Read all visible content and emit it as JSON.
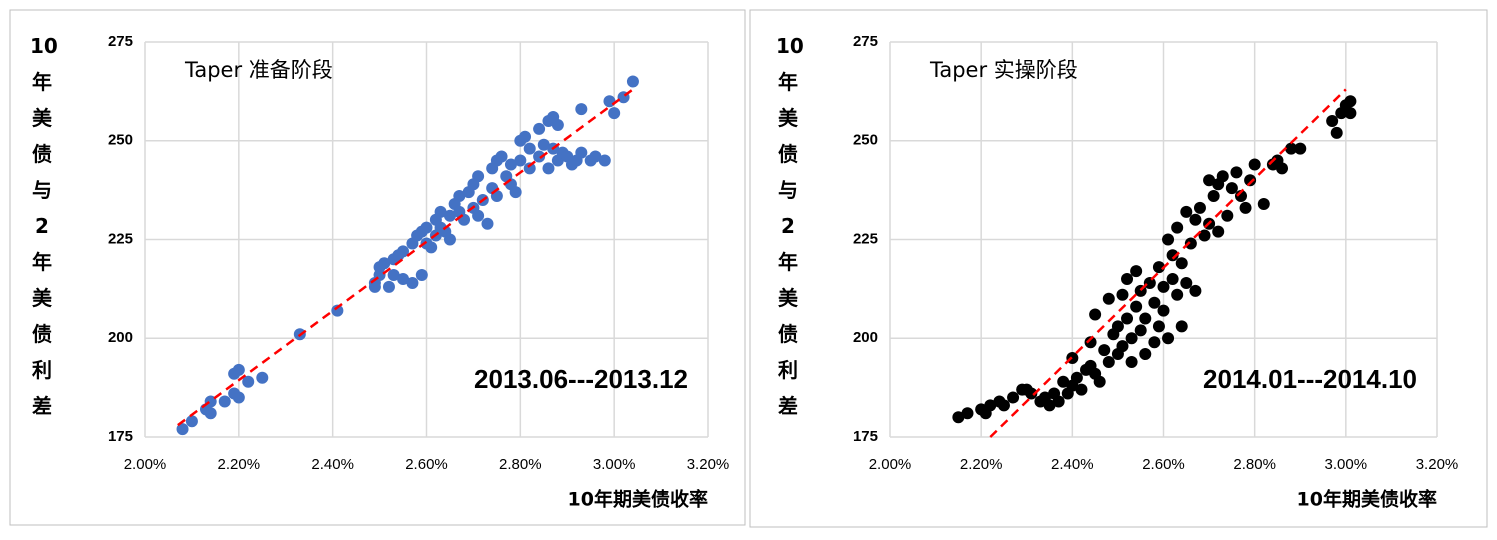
{
  "chart_data": [
    {
      "type": "scatter",
      "title": "Taper 准备阶段",
      "annotation": "2013.06---2013.12",
      "x_label": "10年期美债收率",
      "y_label": "10年美债与2年美债利差",
      "color": "#4472c4",
      "grid": true,
      "xlim": [
        2.0,
        3.2
      ],
      "ylim": [
        175,
        275
      ],
      "xticks": [
        {
          "value": 2.0,
          "label": "2.00%"
        },
        {
          "value": 2.2,
          "label": "2.20%"
        },
        {
          "value": 2.4,
          "label": "2.40%"
        },
        {
          "value": 2.6,
          "label": "2.60%"
        },
        {
          "value": 2.8,
          "label": "2.80%"
        },
        {
          "value": 3.0,
          "label": "3.00%"
        },
        {
          "value": 3.2,
          "label": "3.20%"
        }
      ],
      "yticks": [
        175,
        200,
        225,
        250,
        275
      ],
      "trendline": {
        "color": "#ff0000",
        "x": [
          2.07,
          3.04
        ],
        "y": [
          178,
          263
        ]
      },
      "x": [
        2.08,
        2.1,
        2.13,
        2.14,
        2.14,
        2.17,
        2.19,
        2.19,
        2.2,
        2.2,
        2.22,
        2.25,
        2.33,
        2.41,
        2.49,
        2.49,
        2.5,
        2.5,
        2.51,
        2.52,
        2.53,
        2.53,
        2.54,
        2.55,
        2.55,
        2.57,
        2.57,
        2.58,
        2.59,
        2.59,
        2.6,
        2.6,
        2.61,
        2.62,
        2.62,
        2.63,
        2.63,
        2.64,
        2.65,
        2.65,
        2.66,
        2.67,
        2.67,
        2.68,
        2.69,
        2.7,
        2.7,
        2.71,
        2.71,
        2.72,
        2.73,
        2.74,
        2.74,
        2.75,
        2.75,
        2.76,
        2.77,
        2.78,
        2.78,
        2.79,
        2.8,
        2.8,
        2.81,
        2.82,
        2.82,
        2.84,
        2.84,
        2.85,
        2.86,
        2.86,
        2.87,
        2.87,
        2.88,
        2.88,
        2.89,
        2.9,
        2.91,
        2.92,
        2.93,
        2.93,
        2.95,
        2.96,
        2.98,
        2.99,
        3.0,
        3.02,
        3.04
      ],
      "values": [
        177,
        179,
        182,
        184,
        181,
        184,
        186,
        191,
        192,
        185,
        189,
        190,
        201,
        207,
        213,
        214,
        216,
        218,
        219,
        213,
        216,
        220,
        221,
        222,
        215,
        214,
        224,
        226,
        216,
        227,
        224,
        228,
        223,
        226,
        230,
        228,
        232,
        227,
        225,
        231,
        234,
        236,
        232,
        230,
        237,
        233,
        239,
        241,
        231,
        235,
        229,
        243,
        238,
        245,
        236,
        246,
        241,
        239,
        244,
        237,
        250,
        245,
        251,
        243,
        248,
        246,
        253,
        249,
        255,
        243,
        256,
        248,
        254,
        245,
        247,
        246,
        244,
        245,
        258,
        247,
        245,
        246,
        245,
        260,
        257,
        261,
        265
      ]
    },
    {
      "type": "scatter",
      "title": "Taper 实操阶段",
      "annotation": "2014.01---2014.10",
      "x_label": "10年期美债收率",
      "y_label": "10年美债与2年美债利差",
      "color": "#000000",
      "grid": true,
      "xlim": [
        2.0,
        3.2
      ],
      "ylim": [
        175,
        275
      ],
      "xticks": [
        {
          "value": 2.0,
          "label": "2.00%"
        },
        {
          "value": 2.2,
          "label": "2.20%"
        },
        {
          "value": 2.4,
          "label": "2.40%"
        },
        {
          "value": 2.6,
          "label": "2.60%"
        },
        {
          "value": 2.8,
          "label": "2.80%"
        },
        {
          "value": 3.0,
          "label": "3.00%"
        },
        {
          "value": 3.2,
          "label": "3.20%"
        }
      ],
      "yticks": [
        175,
        200,
        225,
        250,
        275
      ],
      "trendline": {
        "color": "#ff0000",
        "x": [
          2.22,
          3.0
        ],
        "y": [
          175,
          263
        ]
      },
      "x": [
        2.15,
        2.17,
        2.2,
        2.21,
        2.22,
        2.24,
        2.25,
        2.27,
        2.29,
        2.3,
        2.31,
        2.33,
        2.34,
        2.35,
        2.36,
        2.37,
        2.38,
        2.39,
        2.4,
        2.4,
        2.41,
        2.42,
        2.43,
        2.44,
        2.44,
        2.45,
        2.45,
        2.46,
        2.47,
        2.48,
        2.48,
        2.49,
        2.5,
        2.5,
        2.51,
        2.51,
        2.52,
        2.52,
        2.53,
        2.53,
        2.54,
        2.54,
        2.55,
        2.55,
        2.56,
        2.56,
        2.57,
        2.58,
        2.58,
        2.59,
        2.59,
        2.6,
        2.6,
        2.61,
        2.61,
        2.62,
        2.62,
        2.63,
        2.63,
        2.64,
        2.64,
        2.65,
        2.65,
        2.66,
        2.67,
        2.67,
        2.68,
        2.69,
        2.7,
        2.7,
        2.71,
        2.72,
        2.72,
        2.73,
        2.74,
        2.75,
        2.76,
        2.77,
        2.78,
        2.79,
        2.8,
        2.82,
        2.84,
        2.85,
        2.86,
        2.88,
        2.9,
        2.97,
        2.98,
        2.99,
        3.0,
        3.01,
        3.01
      ],
      "values": [
        180,
        181,
        182,
        181,
        183,
        184,
        183,
        185,
        187,
        187,
        186,
        184,
        185,
        183,
        186,
        184,
        189,
        186,
        188,
        195,
        190,
        187,
        192,
        193,
        199,
        191,
        206,
        189,
        197,
        194,
        210,
        201,
        196,
        203,
        211,
        198,
        205,
        215,
        200,
        194,
        208,
        217,
        202,
        212,
        196,
        205,
        214,
        199,
        209,
        203,
        218,
        207,
        213,
        225,
        200,
        215,
        221,
        211,
        228,
        219,
        203,
        232,
        214,
        224,
        230,
        212,
        233,
        226,
        240,
        229,
        236,
        239,
        227,
        241,
        231,
        238,
        242,
        236,
        233,
        240,
        244,
        234,
        244,
        245,
        243,
        248,
        248,
        255,
        252,
        257,
        259,
        260,
        257
      ]
    }
  ]
}
